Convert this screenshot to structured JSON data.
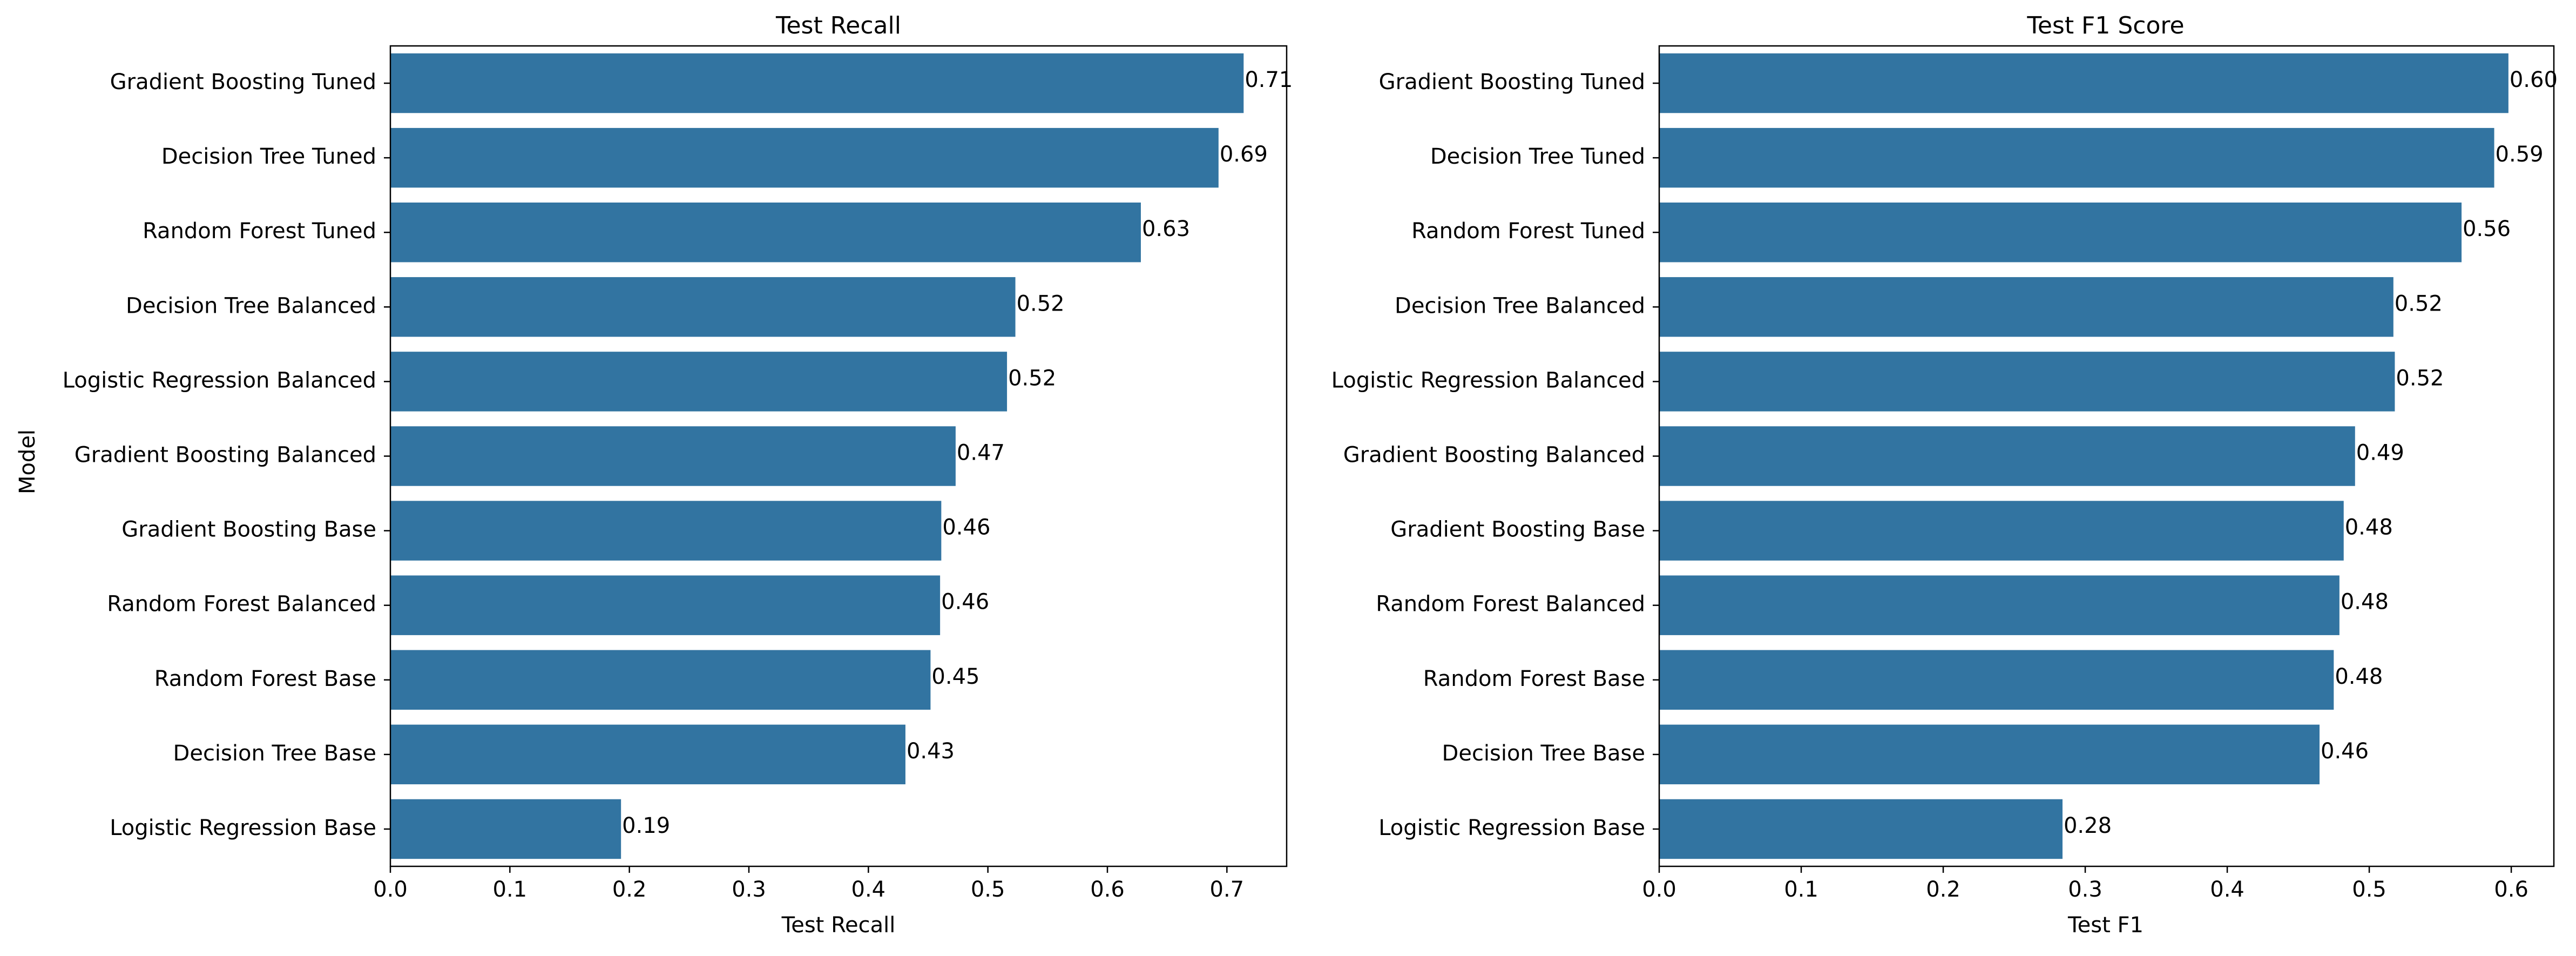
{
  "chart_data": [
    {
      "type": "bar",
      "orientation": "horizontal",
      "title": "Test Recall",
      "xlabel": "Test Recall",
      "ylabel": "Model",
      "xlim": [
        0,
        0.75
      ],
      "xticks": [
        "0.0",
        "0.1",
        "0.2",
        "0.3",
        "0.4",
        "0.5",
        "0.6",
        "0.7"
      ],
      "categories": [
        "Gradient Boosting Tuned",
        "Decision Tree Tuned",
        "Random Forest Tuned",
        "Decision Tree Balanced",
        "Logistic Regression Balanced",
        "Gradient Boosting Balanced",
        "Gradient Boosting Base",
        "Random Forest Balanced",
        "Random Forest Base",
        "Decision Tree Base",
        "Logistic Regression Base"
      ],
      "values": [
        0.714,
        0.693,
        0.628,
        0.523,
        0.516,
        0.473,
        0.461,
        0.46,
        0.452,
        0.431,
        0.193
      ],
      "value_labels": [
        "0.71",
        "0.69",
        "0.63",
        "0.52",
        "0.52",
        "0.47",
        "0.46",
        "0.46",
        "0.45",
        "0.43",
        "0.19"
      ],
      "grid": false,
      "color": "#3274a1"
    },
    {
      "type": "bar",
      "orientation": "horizontal",
      "title": "Test F1 Score",
      "xlabel": "Test F1",
      "ylabel": "",
      "xlim": [
        0,
        0.63
      ],
      "xticks": [
        "0.0",
        "0.1",
        "0.2",
        "0.3",
        "0.4",
        "0.5",
        "0.6"
      ],
      "categories": [
        "Gradient Boosting Tuned",
        "Decision Tree Tuned",
        "Random Forest Tuned",
        "Decision Tree Balanced",
        "Logistic Regression Balanced",
        "Gradient Boosting Balanced",
        "Gradient Boosting Base",
        "Random Forest Balanced",
        "Random Forest Base",
        "Decision Tree Base",
        "Logistic Regression Base"
      ],
      "values": [
        0.598,
        0.588,
        0.565,
        0.517,
        0.518,
        0.49,
        0.482,
        0.479,
        0.475,
        0.465,
        0.284
      ],
      "value_labels": [
        "0.60",
        "0.59",
        "0.56",
        "0.52",
        "0.52",
        "0.49",
        "0.48",
        "0.48",
        "0.48",
        "0.46",
        "0.28"
      ],
      "grid": false,
      "color": "#3274a1"
    }
  ]
}
